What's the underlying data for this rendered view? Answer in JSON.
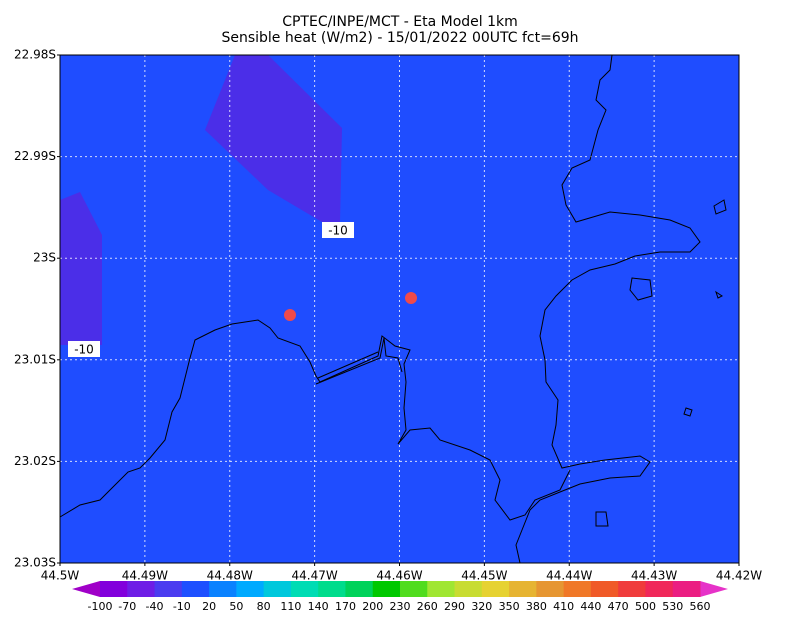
{
  "title": [
    "CPTEC/INPE/MCT -  Eta Model 1km",
    "Sensible heat (W/m2) - 15/01/2022 00UTC fct=69h"
  ],
  "y_axis_labels": [
    "22.98S",
    "22.99S",
    "23S",
    "23.01S",
    "23.02S",
    "23.03S"
  ],
  "x_axis_labels": [
    "44.5W",
    "44.49W",
    "44.48W",
    "44.47W",
    "44.46W",
    "44.45W",
    "44.44W",
    "44.43W",
    "44.42W"
  ],
  "contour_labels": [
    "-10",
    "-10"
  ],
  "colorbar": {
    "labels": [
      "-100",
      "-70",
      "-40",
      "-10",
      "20",
      "50",
      "80",
      "110",
      "140",
      "170",
      "200",
      "230",
      "260",
      "290",
      "320",
      "350",
      "380",
      "410",
      "440",
      "470",
      "500",
      "530",
      "560"
    ],
    "colors": [
      "#8200dc",
      "#6e1ee6",
      "#4b3cf0",
      "#1e50ff",
      "#0a82ff",
      "#00aaff",
      "#00c8dc",
      "#00dcb4",
      "#00dc8c",
      "#00d25a",
      "#00c800",
      "#50dc1e",
      "#a0e632",
      "#c8dc32",
      "#e6d232",
      "#e6b432",
      "#e69632",
      "#f07828",
      "#f05a28",
      "#f03c3c",
      "#f0285a",
      "#eb1e82"
    ],
    "under_color": "#a000c8",
    "over_color": "#e632c8"
  },
  "field_color": "#1f4dff",
  "low_color": "#4b2ee8"
}
